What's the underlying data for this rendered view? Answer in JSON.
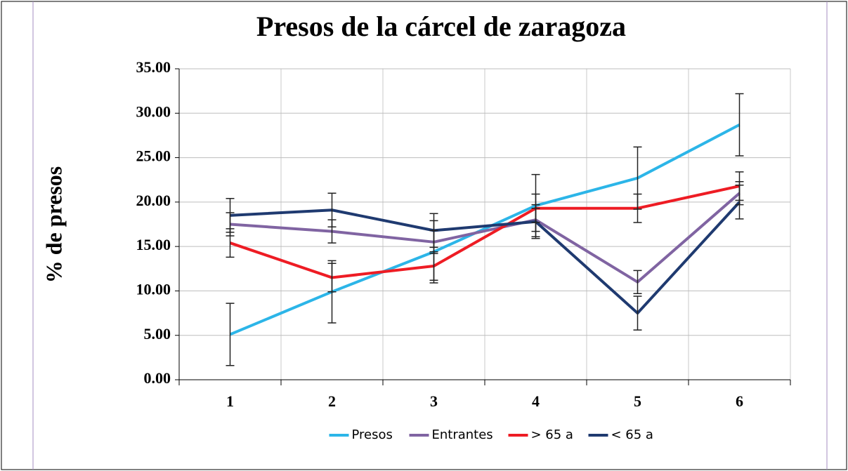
{
  "chart_data": {
    "type": "line",
    "title": "Presos de la cárcel de zaragoza",
    "y_label": "% de presos",
    "categories": [
      "1",
      "2",
      "3",
      "4",
      "5",
      "6"
    ],
    "series": [
      {
        "name": "Presos",
        "color": "#2cb5e8",
        "values": [
          5.1,
          9.9,
          14.4,
          19.6,
          22.7,
          28.7
        ],
        "errors": [
          3.5,
          3.5,
          3.5,
          3.5,
          3.5,
          3.5
        ]
      },
      {
        "name": "Entrantes",
        "color": "#8064a2",
        "values": [
          17.5,
          16.7,
          15.5,
          18.0,
          11.0,
          21.0
        ],
        "errors": [
          1.3,
          1.3,
          1.3,
          1.3,
          1.3,
          1.3
        ]
      },
      {
        "name": "> 65 a",
        "color": "#ee1c24",
        "values": [
          15.4,
          11.5,
          12.8,
          19.3,
          19.3,
          21.8
        ],
        "errors": [
          1.6,
          1.6,
          1.6,
          1.6,
          1.6,
          1.6
        ]
      },
      {
        "name": "< 65 a",
        "color": "#1f3a70",
        "values": [
          18.5,
          19.1,
          16.8,
          17.8,
          7.5,
          20.0
        ],
        "errors": [
          1.9,
          1.9,
          1.9,
          1.9,
          1.9,
          1.9
        ]
      }
    ],
    "ylim": [
      0,
      35
    ],
    "yticks": [
      {
        "value": 0,
        "label": "0.00"
      },
      {
        "value": 5,
        "label": "5.00"
      },
      {
        "value": 10,
        "label": "10.00"
      },
      {
        "value": 15,
        "label": "15.00"
      },
      {
        "value": 20,
        "label": "20.00"
      },
      {
        "value": 25,
        "label": "25.00"
      },
      {
        "value": 30,
        "label": "30.00"
      },
      {
        "value": 35,
        "label": "35.00"
      }
    ],
    "grid": true,
    "legend": "bottom"
  }
}
